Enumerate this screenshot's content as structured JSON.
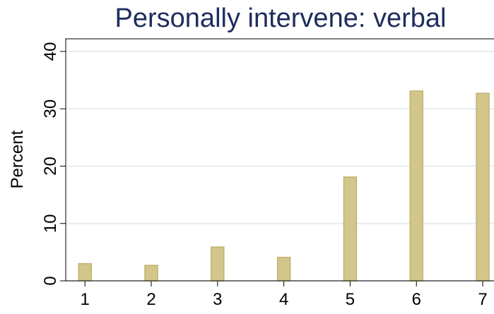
{
  "chart_data": {
    "type": "bar",
    "title": "Personally intervene: verbal",
    "ylabel": "Percent",
    "x": [
      1,
      2,
      3,
      4,
      5,
      6,
      7
    ],
    "values": [
      3.0,
      2.7,
      5.9,
      4.1,
      18.1,
      33.1,
      32.7
    ],
    "color": "#d3c68b",
    "xlim": [
      0.71,
      7.17
    ],
    "xticks": [
      1,
      2,
      3,
      4,
      5,
      6,
      7
    ],
    "ylim": [
      0,
      42.2
    ],
    "yticks": [
      0,
      10,
      20,
      30,
      40
    ],
    "grid": true
  }
}
